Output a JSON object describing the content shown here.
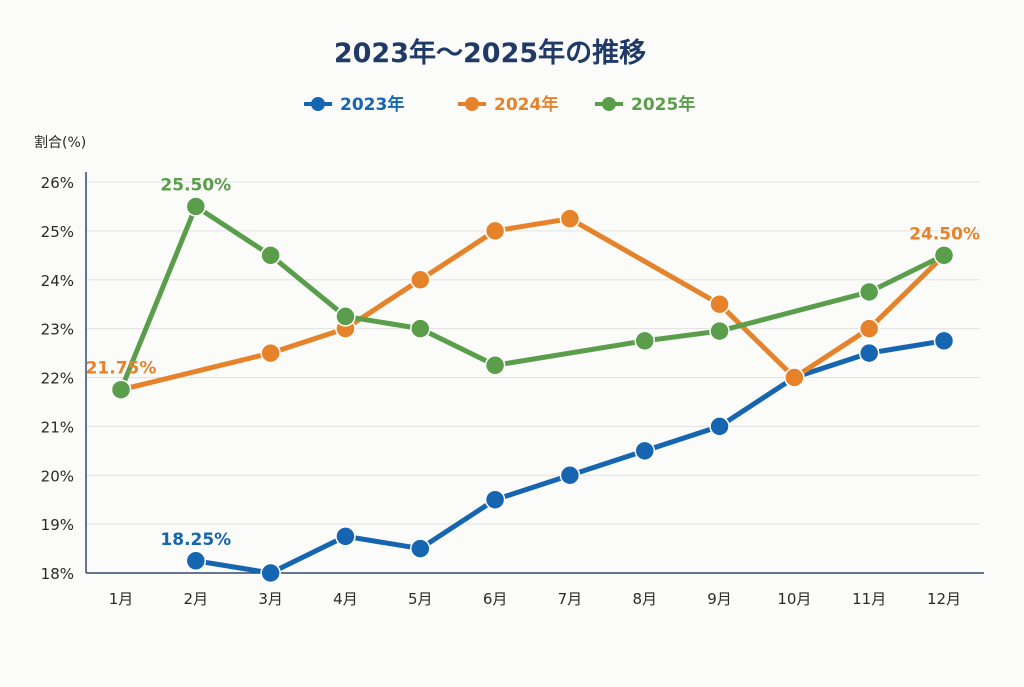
{
  "chart_data": {
    "type": "line",
    "title": "2023年〜2025年の推移",
    "ylabel": "割合(%)",
    "xlabel": "",
    "categories": [
      "1月",
      "2月",
      "3月",
      "4月",
      "5月",
      "6月",
      "7月",
      "8月",
      "9月",
      "10月",
      "11月",
      "12月"
    ],
    "ylim": [
      18,
      26
    ],
    "yticks": [
      18,
      19,
      20,
      21,
      22,
      23,
      24,
      25,
      26
    ],
    "ytick_labels": [
      "18%",
      "19%",
      "20%",
      "21%",
      "22%",
      "23%",
      "24%",
      "25%",
      "26%"
    ],
    "grid": "horizontal",
    "legend_position": "top-center",
    "series": [
      {
        "name": "2023年",
        "color": "#1565b0",
        "values": [
          null,
          18.25,
          18.0,
          18.75,
          18.5,
          19.5,
          20.0,
          20.5,
          21.0,
          22.0,
          22.5,
          22.75
        ]
      },
      {
        "name": "2024年",
        "color": "#e6832a",
        "values": [
          21.75,
          null,
          22.5,
          23.0,
          24.0,
          25.0,
          25.25,
          null,
          23.5,
          22.0,
          23.0,
          24.5
        ]
      },
      {
        "name": "2025年",
        "color": "#5a9e4c",
        "values": [
          21.75,
          25.5,
          24.5,
          23.25,
          23.0,
          22.25,
          null,
          22.75,
          22.95,
          null,
          23.75,
          24.5
        ]
      }
    ],
    "annotations": [
      {
        "text": "25.50%",
        "series": 2,
        "index": 1,
        "anchor": "above"
      },
      {
        "text": "21.75%",
        "series": 1,
        "index": 0,
        "anchor": "above"
      },
      {
        "text": "18.25%",
        "series": 0,
        "index": 1,
        "anchor": "above"
      },
      {
        "text": "24.50%",
        "series": 1,
        "index": 11,
        "anchor": "above-left"
      }
    ]
  }
}
